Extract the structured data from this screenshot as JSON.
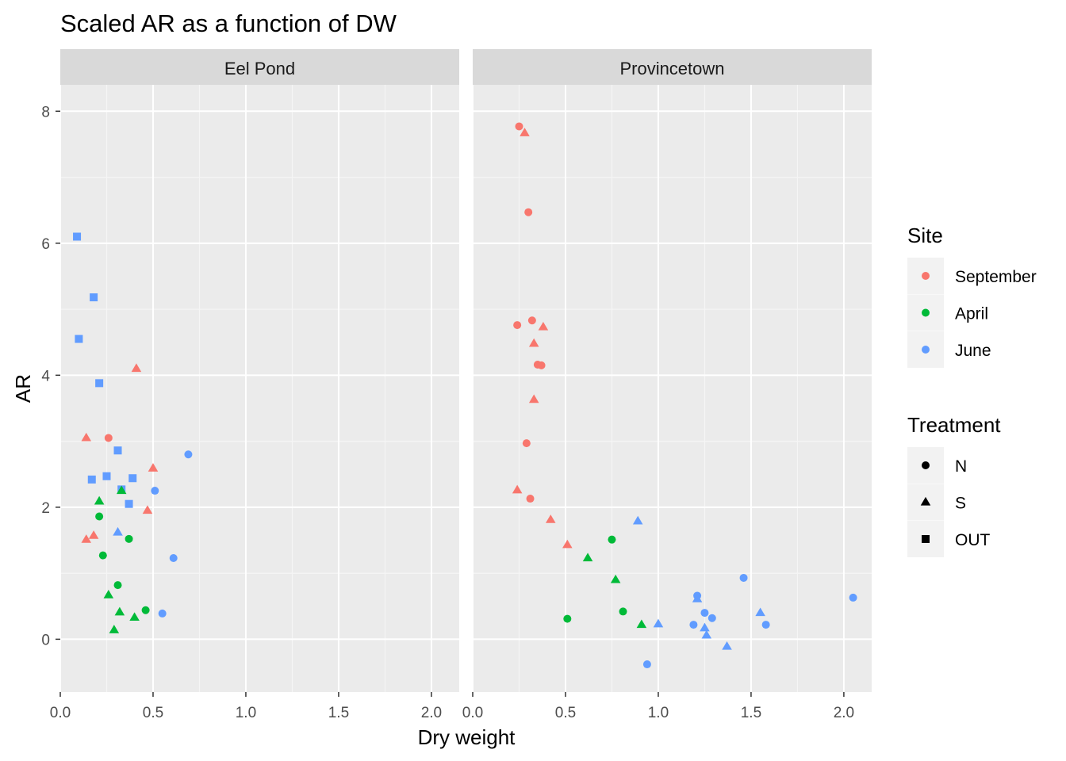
{
  "chart_data": {
    "type": "scatter",
    "title": "Scaled AR as a function of DW",
    "xlabel": "Dry weight",
    "ylabel": "AR",
    "xlim": [
      0.0,
      2.15
    ],
    "ylim": [
      -0.8,
      8.4
    ],
    "x_ticks": [
      0.0,
      0.5,
      1.0,
      1.5,
      2.0
    ],
    "x_tick_labels": [
      "0.0",
      "0.5",
      "1.0",
      "1.5",
      "2.0"
    ],
    "y_ticks": [
      0,
      2,
      4,
      6,
      8
    ],
    "y_tick_labels": [
      "0",
      "2",
      "4",
      "6",
      "8"
    ],
    "grid": true,
    "facets": [
      "Eel Pond",
      "Provincetown"
    ],
    "legend_position": "right",
    "color_legend": {
      "title": "Site",
      "entries": [
        {
          "label": "September",
          "color": "#F8766D"
        },
        {
          "label": "April",
          "color": "#00BA38"
        },
        {
          "label": "June",
          "color": "#619CFF"
        }
      ]
    },
    "shape_legend": {
      "title": "Treatment",
      "entries": [
        {
          "label": "N",
          "shape": "circle"
        },
        {
          "label": "S",
          "shape": "triangle"
        },
        {
          "label": "OUT",
          "shape": "square"
        }
      ]
    },
    "points": [
      {
        "facet": "Eel Pond",
        "site": "June",
        "treatment": "OUT",
        "x": 0.09,
        "y": 6.1
      },
      {
        "facet": "Eel Pond",
        "site": "June",
        "treatment": "OUT",
        "x": 0.18,
        "y": 5.18
      },
      {
        "facet": "Eel Pond",
        "site": "June",
        "treatment": "OUT",
        "x": 0.1,
        "y": 4.55
      },
      {
        "facet": "Eel Pond",
        "site": "June",
        "treatment": "OUT",
        "x": 0.21,
        "y": 3.88
      },
      {
        "facet": "Eel Pond",
        "site": "June",
        "treatment": "OUT",
        "x": 0.31,
        "y": 2.86
      },
      {
        "facet": "Eel Pond",
        "site": "June",
        "treatment": "OUT",
        "x": 0.17,
        "y": 2.42
      },
      {
        "facet": "Eel Pond",
        "site": "June",
        "treatment": "OUT",
        "x": 0.25,
        "y": 2.47
      },
      {
        "facet": "Eel Pond",
        "site": "June",
        "treatment": "OUT",
        "x": 0.39,
        "y": 2.44
      },
      {
        "facet": "Eel Pond",
        "site": "June",
        "treatment": "OUT",
        "x": 0.33,
        "y": 2.27
      },
      {
        "facet": "Eel Pond",
        "site": "June",
        "treatment": "OUT",
        "x": 0.37,
        "y": 2.05
      },
      {
        "facet": "Eel Pond",
        "site": "September",
        "treatment": "S",
        "x": 0.41,
        "y": 4.1
      },
      {
        "facet": "Eel Pond",
        "site": "September",
        "treatment": "S",
        "x": 0.14,
        "y": 3.05
      },
      {
        "facet": "Eel Pond",
        "site": "September",
        "treatment": "N",
        "x": 0.26,
        "y": 3.05
      },
      {
        "facet": "Eel Pond",
        "site": "September",
        "treatment": "S",
        "x": 0.5,
        "y": 2.59
      },
      {
        "facet": "Eel Pond",
        "site": "September",
        "treatment": "S",
        "x": 0.47,
        "y": 1.95
      },
      {
        "facet": "Eel Pond",
        "site": "September",
        "treatment": "S",
        "x": 0.18,
        "y": 1.57
      },
      {
        "facet": "Eel Pond",
        "site": "September",
        "treatment": "S",
        "x": 0.14,
        "y": 1.51
      },
      {
        "facet": "Eel Pond",
        "site": "June",
        "treatment": "N",
        "x": 0.69,
        "y": 2.8
      },
      {
        "facet": "Eel Pond",
        "site": "June",
        "treatment": "N",
        "x": 0.51,
        "y": 2.25
      },
      {
        "facet": "Eel Pond",
        "site": "June",
        "treatment": "S",
        "x": 0.31,
        "y": 1.62
      },
      {
        "facet": "Eel Pond",
        "site": "June",
        "treatment": "N",
        "x": 0.61,
        "y": 1.23
      },
      {
        "facet": "Eel Pond",
        "site": "June",
        "treatment": "N",
        "x": 0.55,
        "y": 0.39
      },
      {
        "facet": "Eel Pond",
        "site": "April",
        "treatment": "S",
        "x": 0.33,
        "y": 2.25
      },
      {
        "facet": "Eel Pond",
        "site": "April",
        "treatment": "S",
        "x": 0.21,
        "y": 2.09
      },
      {
        "facet": "Eel Pond",
        "site": "April",
        "treatment": "N",
        "x": 0.21,
        "y": 1.86
      },
      {
        "facet": "Eel Pond",
        "site": "April",
        "treatment": "N",
        "x": 0.37,
        "y": 1.52
      },
      {
        "facet": "Eel Pond",
        "site": "April",
        "treatment": "N",
        "x": 0.23,
        "y": 1.27
      },
      {
        "facet": "Eel Pond",
        "site": "April",
        "treatment": "N",
        "x": 0.31,
        "y": 0.82
      },
      {
        "facet": "Eel Pond",
        "site": "April",
        "treatment": "S",
        "x": 0.26,
        "y": 0.67
      },
      {
        "facet": "Eel Pond",
        "site": "April",
        "treatment": "N",
        "x": 0.46,
        "y": 0.44
      },
      {
        "facet": "Eel Pond",
        "site": "April",
        "treatment": "S",
        "x": 0.32,
        "y": 0.41
      },
      {
        "facet": "Eel Pond",
        "site": "April",
        "treatment": "S",
        "x": 0.4,
        "y": 0.33
      },
      {
        "facet": "Eel Pond",
        "site": "April",
        "treatment": "S",
        "x": 0.29,
        "y": 0.14
      },
      {
        "facet": "Provincetown",
        "site": "September",
        "treatment": "N",
        "x": 0.25,
        "y": 7.77
      },
      {
        "facet": "Provincetown",
        "site": "September",
        "treatment": "S",
        "x": 0.28,
        "y": 7.67
      },
      {
        "facet": "Provincetown",
        "site": "September",
        "treatment": "N",
        "x": 0.3,
        "y": 6.47
      },
      {
        "facet": "Provincetown",
        "site": "September",
        "treatment": "N",
        "x": 0.32,
        "y": 4.83
      },
      {
        "facet": "Provincetown",
        "site": "September",
        "treatment": "N",
        "x": 0.24,
        "y": 4.76
      },
      {
        "facet": "Provincetown",
        "site": "September",
        "treatment": "S",
        "x": 0.38,
        "y": 4.73
      },
      {
        "facet": "Provincetown",
        "site": "September",
        "treatment": "S",
        "x": 0.33,
        "y": 4.48
      },
      {
        "facet": "Provincetown",
        "site": "September",
        "treatment": "N",
        "x": 0.35,
        "y": 4.16
      },
      {
        "facet": "Provincetown",
        "site": "September",
        "treatment": "N",
        "x": 0.37,
        "y": 4.15
      },
      {
        "facet": "Provincetown",
        "site": "September",
        "treatment": "S",
        "x": 0.33,
        "y": 3.63
      },
      {
        "facet": "Provincetown",
        "site": "September",
        "treatment": "N",
        "x": 0.29,
        "y": 2.97
      },
      {
        "facet": "Provincetown",
        "site": "September",
        "treatment": "S",
        "x": 0.24,
        "y": 2.26
      },
      {
        "facet": "Provincetown",
        "site": "September",
        "treatment": "N",
        "x": 0.31,
        "y": 2.13
      },
      {
        "facet": "Provincetown",
        "site": "September",
        "treatment": "S",
        "x": 0.42,
        "y": 1.81
      },
      {
        "facet": "Provincetown",
        "site": "September",
        "treatment": "S",
        "x": 0.51,
        "y": 1.43
      },
      {
        "facet": "Provincetown",
        "site": "April",
        "treatment": "N",
        "x": 0.75,
        "y": 1.51
      },
      {
        "facet": "Provincetown",
        "site": "April",
        "treatment": "S",
        "x": 0.62,
        "y": 1.23
      },
      {
        "facet": "Provincetown",
        "site": "April",
        "treatment": "S",
        "x": 0.77,
        "y": 0.9
      },
      {
        "facet": "Provincetown",
        "site": "April",
        "treatment": "N",
        "x": 0.81,
        "y": 0.42
      },
      {
        "facet": "Provincetown",
        "site": "April",
        "treatment": "N",
        "x": 0.51,
        "y": 0.31
      },
      {
        "facet": "Provincetown",
        "site": "April",
        "treatment": "S",
        "x": 0.91,
        "y": 0.22
      },
      {
        "facet": "Provincetown",
        "site": "June",
        "treatment": "S",
        "x": 0.89,
        "y": 1.79
      },
      {
        "facet": "Provincetown",
        "site": "June",
        "treatment": "N",
        "x": 1.46,
        "y": 0.93
      },
      {
        "facet": "Provincetown",
        "site": "June",
        "treatment": "N",
        "x": 1.21,
        "y": 0.66
      },
      {
        "facet": "Provincetown",
        "site": "June",
        "treatment": "S",
        "x": 1.21,
        "y": 0.61
      },
      {
        "facet": "Provincetown",
        "site": "June",
        "treatment": "N",
        "x": 2.05,
        "y": 0.63
      },
      {
        "facet": "Provincetown",
        "site": "June",
        "treatment": "N",
        "x": 1.25,
        "y": 0.4
      },
      {
        "facet": "Provincetown",
        "site": "June",
        "treatment": "S",
        "x": 1.55,
        "y": 0.4
      },
      {
        "facet": "Provincetown",
        "site": "June",
        "treatment": "N",
        "x": 1.29,
        "y": 0.32
      },
      {
        "facet": "Provincetown",
        "site": "June",
        "treatment": "S",
        "x": 1.0,
        "y": 0.23
      },
      {
        "facet": "Provincetown",
        "site": "June",
        "treatment": "N",
        "x": 1.19,
        "y": 0.22
      },
      {
        "facet": "Provincetown",
        "site": "June",
        "treatment": "N",
        "x": 1.58,
        "y": 0.22
      },
      {
        "facet": "Provincetown",
        "site": "June",
        "treatment": "S",
        "x": 1.25,
        "y": 0.17
      },
      {
        "facet": "Provincetown",
        "site": "June",
        "treatment": "S",
        "x": 1.26,
        "y": 0.06
      },
      {
        "facet": "Provincetown",
        "site": "June",
        "treatment": "S",
        "x": 1.37,
        "y": -0.11
      },
      {
        "facet": "Provincetown",
        "site": "June",
        "treatment": "N",
        "x": 0.94,
        "y": -0.38
      }
    ]
  }
}
